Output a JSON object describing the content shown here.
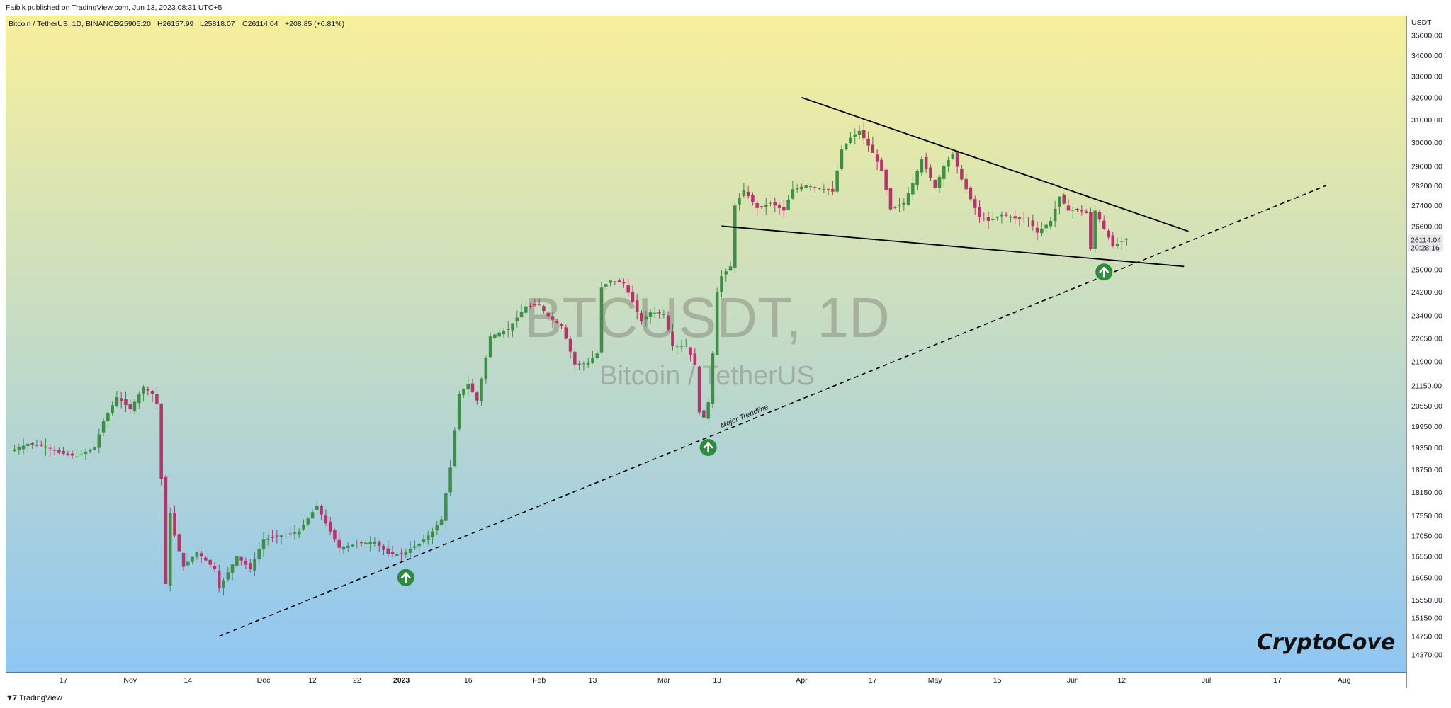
{
  "header": {
    "publish_note": "Faibik published on TradingView.com, Jun 13, 2023 08:31 UTC+5"
  },
  "legend": {
    "symbol": "Bitcoin / TetherUS, 1D, BINANCE",
    "open": "O25905.20",
    "high": "H26157.99",
    "low": "L25818.07",
    "close": "C26114.04",
    "change": "+208.85 (+0.81%)"
  },
  "price_axis": {
    "currency": "USDT",
    "last_price": "26114.04",
    "countdown": "20:28:16"
  },
  "watermark": {
    "main": "BTCUSDT, 1D",
    "sub": "Bitcoin / TetherUS"
  },
  "annotations": {
    "trendline_label": "Major Trendline",
    "brand": "CryptoCove"
  },
  "footer": {
    "logo_text": "TradingView"
  },
  "colors": {
    "bg_top": "#f7f09a",
    "bg_bottom": "#8fc6f3",
    "up_candle": "#3e8f45",
    "down_candle": "#b8336a",
    "trendline": "#000000",
    "signal": "#2e8b3e",
    "price_label_bg": "#e8e8e8"
  },
  "chart_data": {
    "type": "candlestick",
    "y_scale": "log",
    "ylim": [
      14000,
      36000
    ],
    "x_range": [
      "2022-10-04",
      "2023-08-15"
    ],
    "y_ticks": [
      14370,
      14750,
      15150,
      15550,
      16050,
      16550,
      17050,
      17550,
      18150,
      18750,
      19350,
      19950,
      20550,
      21150,
      21900,
      22650,
      23400,
      24200,
      25000,
      26600,
      27400,
      28200,
      29000,
      30000,
      31000,
      32000,
      33000,
      34000,
      35000
    ],
    "y_tick_labels": [
      "14370.00",
      "14750.00",
      "15150.00",
      "15550.00",
      "16050.00",
      "16550.00",
      "17050.00",
      "17550.00",
      "18150.00",
      "18750.00",
      "19350.00",
      "19950.00",
      "20550.00",
      "21150.00",
      "21900.00",
      "22650.00",
      "23400.00",
      "24200.00",
      "25000.00",
      "26600.00",
      "27400.00",
      "28200.00",
      "29000.00",
      "30000.00",
      "31000.00",
      "32000.00",
      "33000.00",
      "34000.00",
      "35000.00"
    ],
    "x_ticks": [
      {
        "date": "2022-10-17",
        "label": "17"
      },
      {
        "date": "2022-11-01",
        "label": "Nov"
      },
      {
        "date": "2022-11-14",
        "label": "14"
      },
      {
        "date": "2022-12-01",
        "label": "Dec"
      },
      {
        "date": "2022-12-12",
        "label": "12"
      },
      {
        "date": "2022-12-22",
        "label": "22"
      },
      {
        "date": "2023-01-01",
        "label": "2023"
      },
      {
        "date": "2023-01-16",
        "label": "16"
      },
      {
        "date": "2023-02-01",
        "label": "Feb"
      },
      {
        "date": "2023-02-13",
        "label": "13"
      },
      {
        "date": "2023-03-01",
        "label": "Mar"
      },
      {
        "date": "2023-03-13",
        "label": "13"
      },
      {
        "date": "2023-04-01",
        "label": "Apr"
      },
      {
        "date": "2023-04-17",
        "label": "17"
      },
      {
        "date": "2023-05-01",
        "label": "May"
      },
      {
        "date": "2023-05-15",
        "label": "15"
      },
      {
        "date": "2023-06-01",
        "label": "Jun"
      },
      {
        "date": "2023-06-12",
        "label": "12"
      },
      {
        "date": "2023-07-01",
        "label": "Jul"
      },
      {
        "date": "2023-07-17",
        "label": "17"
      },
      {
        "date": "2023-08-01",
        "label": "Aug"
      }
    ],
    "last_price": 26114.04,
    "close_path": [
      [
        "2022-10-05",
        19250
      ],
      [
        "2022-10-09",
        19450
      ],
      [
        "2022-10-13",
        19380
      ],
      [
        "2022-10-16",
        19200
      ],
      [
        "2022-10-20",
        19100
      ],
      [
        "2022-10-24",
        19350
      ],
      [
        "2022-10-26",
        20100
      ],
      [
        "2022-10-29",
        20800
      ],
      [
        "2022-11-01",
        20450
      ],
      [
        "2022-11-04",
        21100
      ],
      [
        "2022-11-06",
        20900
      ],
      [
        "2022-11-07",
        20600
      ],
      [
        "2022-11-08",
        18500
      ],
      [
        "2022-11-09",
        15900
      ],
      [
        "2022-11-10",
        17600
      ],
      [
        "2022-11-11",
        17050
      ],
      [
        "2022-11-13",
        16300
      ],
      [
        "2022-11-16",
        16650
      ],
      [
        "2022-11-20",
        16250
      ],
      [
        "2022-11-21",
        15800
      ],
      [
        "2022-11-25",
        16550
      ],
      [
        "2022-11-28",
        16250
      ],
      [
        "2022-12-01",
        16950
      ],
      [
        "2022-12-05",
        17050
      ],
      [
        "2022-12-09",
        17150
      ],
      [
        "2022-12-13",
        17800
      ],
      [
        "2022-12-15",
        17350
      ],
      [
        "2022-12-18",
        16750
      ],
      [
        "2022-12-22",
        16850
      ],
      [
        "2022-12-26",
        16900
      ],
      [
        "2022-12-29",
        16600
      ],
      [
        "2023-01-01",
        16600
      ],
      [
        "2023-01-05",
        16850
      ],
      [
        "2023-01-08",
        17150
      ],
      [
        "2023-01-10",
        17450
      ],
      [
        "2023-01-12",
        18800
      ],
      [
        "2023-01-14",
        20900
      ],
      [
        "2023-01-16",
        21200
      ],
      [
        "2023-01-18",
        20700
      ],
      [
        "2023-01-21",
        22700
      ],
      [
        "2023-01-25",
        22950
      ],
      [
        "2023-01-29",
        23700
      ],
      [
        "2023-02-01",
        23750
      ],
      [
        "2023-02-03",
        23350
      ],
      [
        "2023-02-06",
        23050
      ],
      [
        "2023-02-09",
        21800
      ],
      [
        "2023-02-12",
        21850
      ],
      [
        "2023-02-14",
        22150
      ],
      [
        "2023-02-15",
        24350
      ],
      [
        "2023-02-17",
        24600
      ],
      [
        "2023-02-20",
        24500
      ],
      [
        "2023-02-24",
        23200
      ],
      [
        "2023-02-26",
        23500
      ],
      [
        "2023-03-01",
        23450
      ],
      [
        "2023-03-03",
        22400
      ],
      [
        "2023-03-06",
        22400
      ],
      [
        "2023-03-08",
        21800
      ],
      [
        "2023-03-09",
        20350
      ],
      [
        "2023-03-10",
        20200
      ],
      [
        "2023-03-11",
        20650
      ],
      [
        "2023-03-12",
        22150
      ],
      [
        "2023-03-13",
        24200
      ],
      [
        "2023-03-14",
        24750
      ],
      [
        "2023-03-16",
        25100
      ],
      [
        "2023-03-17",
        27400
      ],
      [
        "2023-03-19",
        28000
      ],
      [
        "2023-03-22",
        27300
      ],
      [
        "2023-03-25",
        27500
      ],
      [
        "2023-03-28",
        27200
      ],
      [
        "2023-03-30",
        28050
      ],
      [
        "2023-04-02",
        28200
      ],
      [
        "2023-04-06",
        28050
      ],
      [
        "2023-04-08",
        27950
      ],
      [
        "2023-04-10",
        29700
      ],
      [
        "2023-04-12",
        30200
      ],
      [
        "2023-04-14",
        30500
      ],
      [
        "2023-04-17",
        29550
      ],
      [
        "2023-04-19",
        28800
      ],
      [
        "2023-04-21",
        27250
      ],
      [
        "2023-04-24",
        27500
      ],
      [
        "2023-04-26",
        28300
      ],
      [
        "2023-04-28",
        29300
      ],
      [
        "2023-05-01",
        28100
      ],
      [
        "2023-05-03",
        29000
      ],
      [
        "2023-05-05",
        29500
      ],
      [
        "2023-05-07",
        28450
      ],
      [
        "2023-05-09",
        27650
      ],
      [
        "2023-05-11",
        26950
      ],
      [
        "2023-05-13",
        26800
      ],
      [
        "2023-05-16",
        27050
      ],
      [
        "2023-05-19",
        26900
      ],
      [
        "2023-05-22",
        26850
      ],
      [
        "2023-05-24",
        26350
      ],
      [
        "2023-05-27",
        26800
      ],
      [
        "2023-05-29",
        27750
      ],
      [
        "2023-05-31",
        27200
      ],
      [
        "2023-06-02",
        27250
      ],
      [
        "2023-06-04",
        27100
      ],
      [
        "2023-06-05",
        25750
      ],
      [
        "2023-06-06",
        27200
      ],
      [
        "2023-06-08",
        26500
      ],
      [
        "2023-06-10",
        25850
      ],
      [
        "2023-06-13",
        26114
      ]
    ],
    "trendlines": [
      {
        "start": [
          "2022-11-21",
          14750
        ],
        "end": [
          "2023-07-28",
          28200
        ],
        "style": "dashed"
      },
      {
        "start": [
          "2023-04-01",
          32000
        ],
        "end": [
          "2023-06-27",
          26400
        ],
        "style": "solid"
      },
      {
        "start": [
          "2023-03-14",
          26600
        ],
        "end": [
          "2023-06-26",
          25100
        ],
        "style": "solid"
      }
    ],
    "signals": [
      {
        "date": "2023-01-02",
        "price": 16050
      },
      {
        "date": "2023-03-11",
        "price": 19350
      },
      {
        "date": "2023-06-08",
        "price": 24900
      }
    ],
    "trendline_label_at": {
      "date": "2023-03-14",
      "price": 19900
    }
  }
}
